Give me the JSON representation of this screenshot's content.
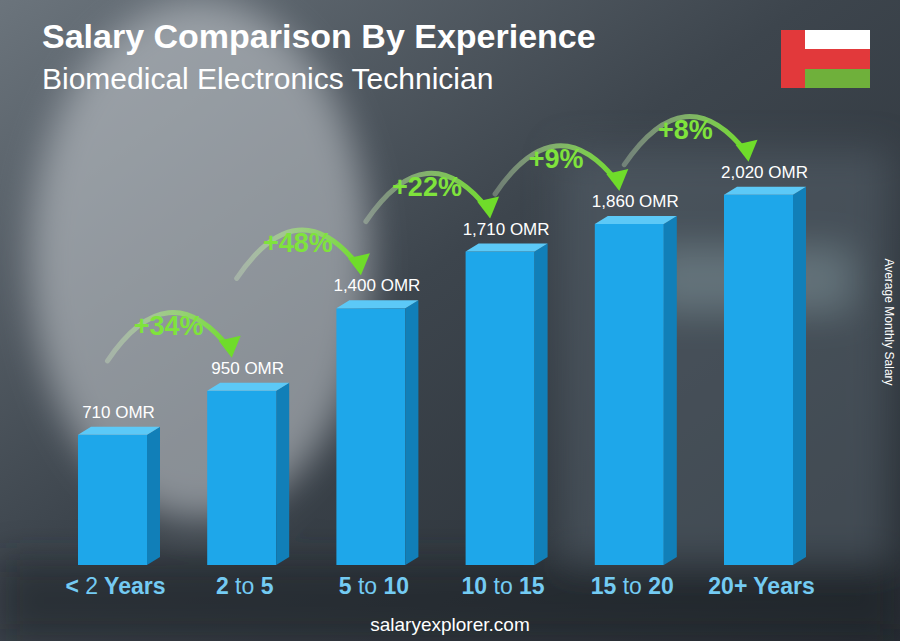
{
  "chart_data": {
    "type": "bar",
    "title": "Salary Comparison By Experience",
    "subtitle": "Biomedical Electronics Technician",
    "categories": [
      "< 2 Years",
      "2 to 5",
      "5 to 10",
      "10 to 15",
      "15 to 20",
      "20+ Years"
    ],
    "values": [
      710,
      950,
      1400,
      1710,
      1860,
      2020
    ],
    "value_labels": [
      "710 OMR",
      "950 OMR",
      "1,400 OMR",
      "1,710 OMR",
      "1,860 OMR",
      "2,020 OMR"
    ],
    "annotations": [
      "+34%",
      "+48%",
      "+22%",
      "+9%",
      "+8%"
    ],
    "y_label": "Average Monthly Salary",
    "source": "salaryexplorer.com",
    "color": "#1ea7ea",
    "ylim": [
      0,
      2400
    ],
    "data_labels": true,
    "tick_labels": "x",
    "grid": false
  }
}
